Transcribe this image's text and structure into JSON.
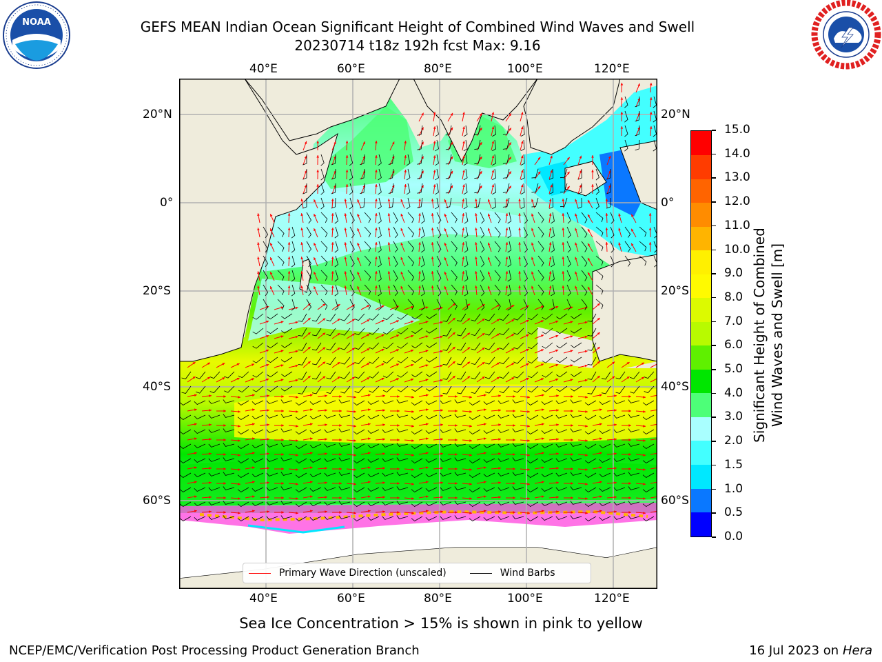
{
  "title": {
    "line1": "GEFS MEAN Indian Ocean Significant Height of Combined Wind Waves and Swell",
    "line2": "20230714 t18z 192h fcst   Max: 9.16"
  },
  "logos": {
    "left": {
      "name": "noaa-logo",
      "text": "NOAA"
    },
    "right": {
      "name": "nws-logo"
    }
  },
  "map": {
    "lon_labels": [
      "40°E",
      "60°E",
      "80°E",
      "100°E",
      "120°E"
    ],
    "lat_labels": [
      "20°N",
      "0°",
      "20°S",
      "40°S",
      "60°S"
    ],
    "lon_ticks": [
      40,
      60,
      80,
      100,
      120
    ],
    "lat_ticks": [
      20,
      0,
      -20,
      -40,
      -60
    ],
    "lon_range": [
      20,
      130
    ],
    "lat_range": [
      28,
      -75
    ],
    "land_color": "#efecdc",
    "grid": true
  },
  "colorbar": {
    "label_line1": "Significant Height of Combined",
    "label_line2": "Wind Waves and Swell [m]",
    "tick_labels": [
      "0.0",
      "0.5",
      "1.0",
      "1.5",
      "2.0",
      "3.0",
      "4.0",
      "5.0",
      "6.0",
      "7.0",
      "8.0",
      "9.0",
      "10.0",
      "11.0",
      "12.0",
      "13.0",
      "14.0",
      "15.0"
    ],
    "colors": [
      "#0000ff",
      "#0a78ff",
      "#00e8ff",
      "#43ffff",
      "#a9ffff",
      "#4dff78",
      "#00e600",
      "#5ff000",
      "#b8fa00",
      "#dcfa00",
      "#fffa00",
      "#fff000",
      "#ffb400",
      "#ff8c00",
      "#ff6400",
      "#ff3c00",
      "#ff0000"
    ]
  },
  "legend": {
    "wave_label": "Primary Wave Direction (unscaled)",
    "wind_label": "Wind Barbs",
    "wave_color": "#ff0000",
    "wind_color": "#000000"
  },
  "caption": "Sea Ice Concentration > 15% is shown in pink to yellow",
  "footer": {
    "left": "NCEP/EMC/Verification Post Processing Product Generation Branch",
    "date": "16 Jul 2023 on ",
    "host": "Hera"
  }
}
